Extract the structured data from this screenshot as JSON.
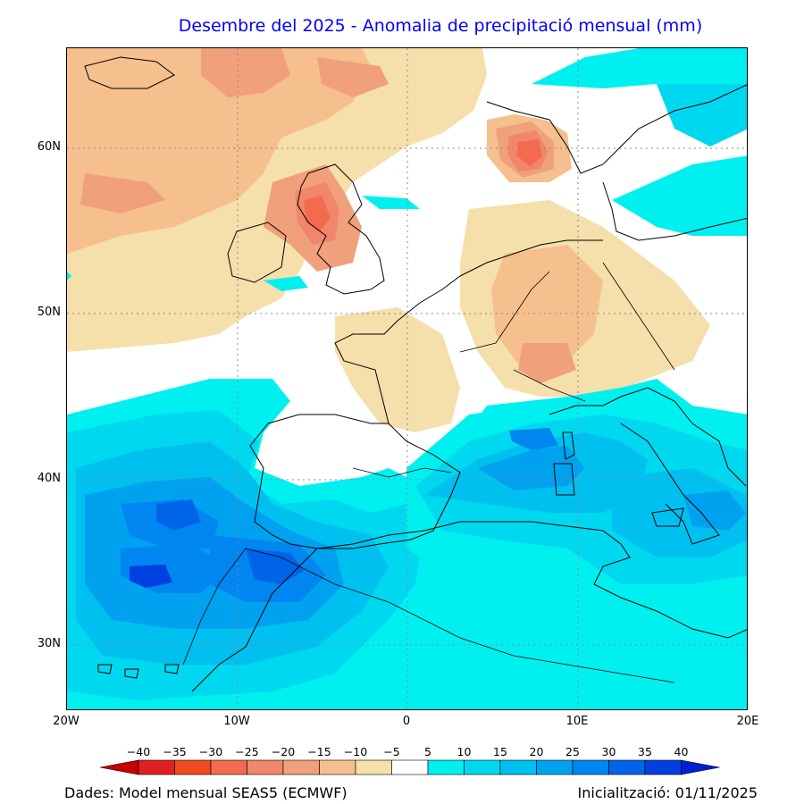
{
  "title": "Desembre del 2025 - Anomalia de precipitació mensual (mm)",
  "lat_labels": [
    "60N",
    "50N",
    "40N",
    "30N"
  ],
  "lon_labels": [
    "20W",
    "10W",
    "0",
    "10E",
    "20E"
  ],
  "colorbar": {
    "ticks": [
      "-40",
      "-35",
      "-30",
      "-25",
      "-20",
      "-15",
      "-10",
      "-5",
      "5",
      "10",
      "15",
      "20",
      "25",
      "30",
      "35",
      "40"
    ],
    "colors": [
      "#c80000",
      "#e02020",
      "#f04a20",
      "#f46a50",
      "#f0866a",
      "#f0a07a",
      "#f5c08e",
      "#f5dfaa",
      "#ffffff",
      "#00f0f0",
      "#00d8f0",
      "#00c0f0",
      "#00a2f0",
      "#0086f0",
      "#0064e8",
      "#0040e0",
      "#0020d0"
    ]
  },
  "footer": {
    "source": "Dades: Model mensual SEAS5 (ECMWF)",
    "init": "Inicialització: 01/11/2025"
  },
  "map_data": {
    "type": "filled-contour-map",
    "extent": {
      "lon": [
        -20,
        20
      ],
      "lat": [
        26,
        66
      ]
    },
    "field": "monthly precipitation anomaly",
    "units": "mm",
    "levels": [
      -40,
      -35,
      -30,
      -25,
      -20,
      -15,
      -10,
      -5,
      5,
      10,
      15,
      20,
      25,
      30,
      35,
      40
    ]
  }
}
